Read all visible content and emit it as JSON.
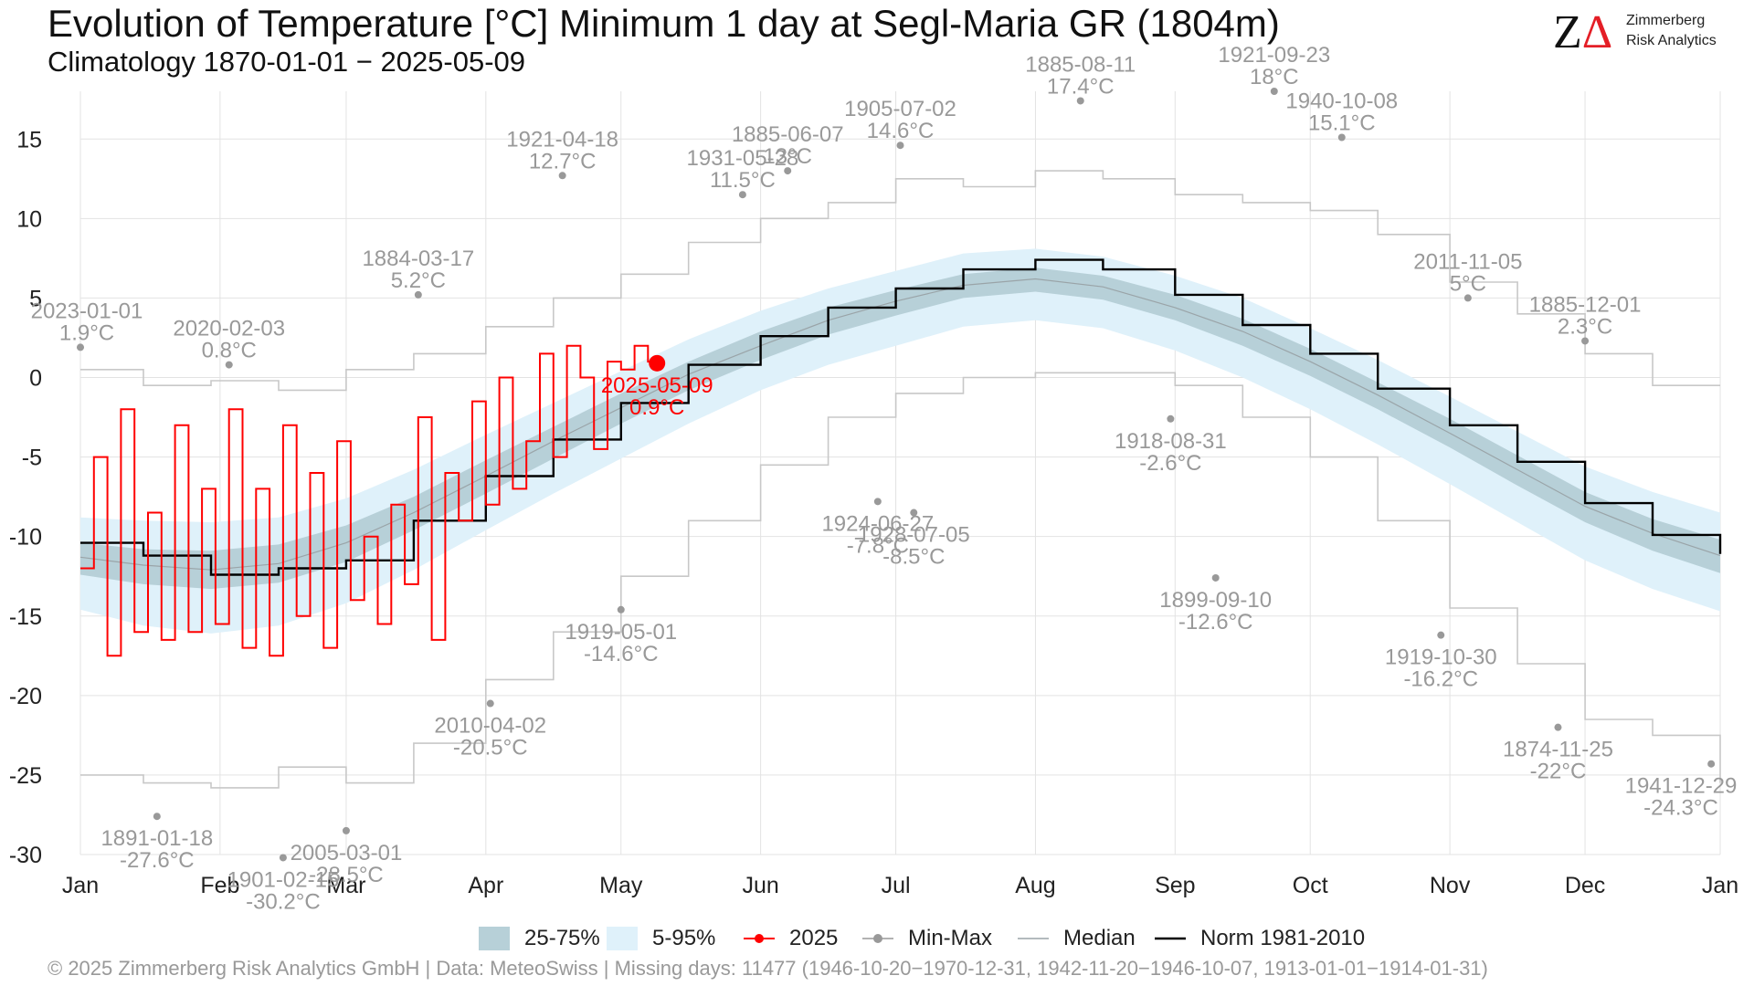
{
  "title": "Evolution of Temperature [°C] Minimum 1 day at Segl-Maria  GR (1804m)",
  "subtitle": "Climatology 1870-01-01 − 2025-05-09",
  "logo": {
    "mark_z": "Z",
    "mark_a": "Δ",
    "line1": "Zimmerberg",
    "line2": "Risk Analytics"
  },
  "footer": "©  2025 Zimmerberg Risk Analytics GmbH | Data: MeteoSwiss | Missing days: 11477 (1946-10-20−1970-12-31, 1942-11-20−1946-10-07, 1913-01-01−1914-01-31)",
  "colors": {
    "band_25_75": "#b7d0d8",
    "band_5_95": "#dff1fa",
    "current": "#ff0000",
    "minmax": "#c8c8c8",
    "median": "#9aa4a8",
    "norm": "#000000",
    "annotation": "#999999"
  },
  "legend": [
    {
      "key": "iqr",
      "label": "25-75%"
    },
    {
      "key": "p90",
      "label": "5-95%"
    },
    {
      "key": "current",
      "label": "2025"
    },
    {
      "key": "minmax",
      "label": "Min-Max"
    },
    {
      "key": "median",
      "label": "Median"
    },
    {
      "key": "norm",
      "label": "Norm 1981-2010"
    }
  ],
  "chart_data": {
    "type": "line",
    "x_unit": "day of year",
    "xlim": [
      1,
      365
    ],
    "ylim": [
      -30,
      18
    ],
    "yticks": [
      15,
      10,
      5,
      0,
      -5,
      -10,
      -15,
      -20,
      -25,
      -30
    ],
    "month_ticks": [
      {
        "label": "Jan",
        "doy": 1
      },
      {
        "label": "Feb",
        "doy": 32
      },
      {
        "label": "Mar",
        "doy": 60
      },
      {
        "label": "Apr",
        "doy": 91
      },
      {
        "label": "May",
        "doy": 121
      },
      {
        "label": "Jun",
        "doy": 152
      },
      {
        "label": "Jul",
        "doy": 182
      },
      {
        "label": "Aug",
        "doy": 213
      },
      {
        "label": "Sep",
        "doy": 244
      },
      {
        "label": "Oct",
        "doy": 274
      },
      {
        "label": "Nov",
        "doy": 305
      },
      {
        "label": "Dec",
        "doy": 335
      },
      {
        "label": "Jan",
        "doy": 365
      }
    ],
    "grid": true,
    "legend_position": "bottom",
    "series": [
      {
        "key": "p95",
        "doy": [
          1,
          15,
          30,
          45,
          60,
          75,
          91,
          106,
          121,
          136,
          152,
          167,
          182,
          197,
          213,
          228,
          244,
          259,
          274,
          289,
          305,
          320,
          335,
          350,
          365
        ],
        "values": [
          -8.8,
          -9.0,
          -9.1,
          -8.8,
          -7.6,
          -5.8,
          -3.6,
          -1.6,
          0.4,
          2.4,
          4.2,
          5.6,
          6.7,
          7.8,
          8.1,
          7.6,
          6.4,
          5.0,
          3.1,
          1.1,
          -1.2,
          -3.4,
          -5.6,
          -7.2,
          -8.5
        ]
      },
      {
        "key": "p75",
        "doy": [
          1,
          15,
          30,
          45,
          60,
          75,
          91,
          106,
          121,
          136,
          152,
          167,
          182,
          197,
          213,
          228,
          244,
          259,
          274,
          289,
          305,
          320,
          335,
          350,
          365
        ],
        "values": [
          -10.4,
          -10.8,
          -10.9,
          -10.5,
          -9.3,
          -7.5,
          -5.2,
          -3.1,
          -1.0,
          1.0,
          2.9,
          4.4,
          5.5,
          6.5,
          6.9,
          6.4,
          5.2,
          3.7,
          1.8,
          -0.3,
          -2.6,
          -4.9,
          -7.2,
          -8.9,
          -10.2
        ]
      },
      {
        "key": "median",
        "doy": [
          1,
          15,
          30,
          45,
          60,
          75,
          91,
          106,
          121,
          136,
          152,
          167,
          182,
          197,
          213,
          228,
          244,
          259,
          274,
          289,
          305,
          320,
          335,
          350,
          365
        ],
        "values": [
          -11.3,
          -11.8,
          -12.1,
          -11.7,
          -10.4,
          -8.5,
          -6.2,
          -4.0,
          -1.9,
          0.2,
          2.0,
          3.6,
          4.8,
          5.8,
          6.2,
          5.7,
          4.4,
          2.9,
          1.0,
          -1.1,
          -3.5,
          -5.8,
          -8.1,
          -9.8,
          -11.2
        ]
      },
      {
        "key": "p25",
        "doy": [
          1,
          15,
          30,
          45,
          60,
          75,
          91,
          106,
          121,
          136,
          152,
          167,
          182,
          197,
          213,
          228,
          244,
          259,
          274,
          289,
          305,
          320,
          335,
          350,
          365
        ],
        "values": [
          -12.4,
          -13.0,
          -13.3,
          -12.9,
          -11.6,
          -9.6,
          -7.3,
          -5.1,
          -2.9,
          -0.8,
          1.1,
          2.7,
          3.9,
          5.0,
          5.4,
          4.9,
          3.6,
          2.0,
          0.1,
          -2.0,
          -4.4,
          -6.8,
          -9.1,
          -10.9,
          -12.3
        ]
      },
      {
        "key": "p5",
        "doy": [
          1,
          15,
          30,
          45,
          60,
          75,
          91,
          106,
          121,
          136,
          152,
          167,
          182,
          197,
          213,
          228,
          244,
          259,
          274,
          289,
          305,
          320,
          335,
          350,
          365
        ],
        "values": [
          -14.6,
          -15.6,
          -16.1,
          -15.6,
          -14.2,
          -12.1,
          -9.6,
          -7.3,
          -5.1,
          -2.9,
          -0.8,
          0.8,
          2.0,
          3.2,
          3.6,
          3.1,
          1.7,
          0.0,
          -2.0,
          -4.2,
          -6.7,
          -9.1,
          -11.5,
          -13.3,
          -14.7
        ]
      },
      {
        "key": "norm",
        "name": "Norm 1981-2010",
        "doy": [
          1,
          15,
          30,
          45,
          60,
          75,
          91,
          106,
          121,
          136,
          152,
          167,
          182,
          197,
          213,
          228,
          244,
          259,
          274,
          289,
          305,
          320,
          335,
          350,
          365
        ],
        "values": [
          -10.4,
          -11.2,
          -12.4,
          -12.0,
          -11.5,
          -9.0,
          -6.2,
          -3.9,
          -1.6,
          0.8,
          2.6,
          4.4,
          5.6,
          6.8,
          7.4,
          6.8,
          5.2,
          3.3,
          1.5,
          -0.7,
          -3.0,
          -5.3,
          -7.9,
          -9.9,
          -11.1
        ]
      },
      {
        "key": "max_record",
        "doy": [
          1,
          15,
          30,
          45,
          60,
          75,
          91,
          106,
          121,
          136,
          152,
          167,
          182,
          197,
          213,
          228,
          244,
          259,
          274,
          289,
          305,
          320,
          335,
          350,
          365
        ],
        "values": [
          0.5,
          -0.5,
          -0.2,
          -0.8,
          0.5,
          1.5,
          3.2,
          5.0,
          6.5,
          8.5,
          10.0,
          11.0,
          12.5,
          12.0,
          13.0,
          12.5,
          11.5,
          11.0,
          10.5,
          9.0,
          6.0,
          4.0,
          1.5,
          -0.5,
          -0.5
        ]
      },
      {
        "key": "min_record",
        "doy": [
          1,
          15,
          30,
          45,
          60,
          75,
          91,
          106,
          121,
          136,
          152,
          167,
          182,
          197,
          213,
          228,
          244,
          259,
          274,
          289,
          305,
          320,
          335,
          350,
          365
        ],
        "values": [
          -25.0,
          -25.5,
          -25.8,
          -24.5,
          -25.5,
          -23.0,
          -19.0,
          -16.0,
          -12.5,
          -9.0,
          -5.5,
          -2.5,
          -1.0,
          0.0,
          0.3,
          0.3,
          -0.5,
          -2.5,
          -5.0,
          -9.0,
          -14.5,
          -18.0,
          -21.5,
          -22.5,
          -25.5
        ]
      },
      {
        "key": "current",
        "name": "2025",
        "doy": [
          1,
          4,
          7,
          10,
          13,
          16,
          19,
          22,
          25,
          28,
          31,
          34,
          37,
          40,
          43,
          46,
          49,
          52,
          55,
          58,
          61,
          64,
          67,
          70,
          73,
          76,
          79,
          82,
          85,
          88,
          91,
          94,
          97,
          100,
          103,
          106,
          109,
          112,
          115,
          118,
          121,
          124,
          127,
          129
        ],
        "values": [
          -12.0,
          -5.0,
          -17.5,
          -2.0,
          -16.0,
          -8.5,
          -16.5,
          -3.0,
          -16.0,
          -7.0,
          -15.5,
          -2.0,
          -17.0,
          -7.0,
          -17.5,
          -3.0,
          -15.0,
          -6.0,
          -17.0,
          -4.0,
          -14.0,
          -10.0,
          -15.5,
          -8.0,
          -13.0,
          -2.5,
          -16.5,
          -6.0,
          -9.0,
          -1.5,
          -8.0,
          0.0,
          -7.0,
          -4.0,
          1.5,
          -5.0,
          2.0,
          0.0,
          -4.5,
          1.0,
          0.5,
          2.0,
          1.0,
          0.9
        ]
      }
    ],
    "annotations": [
      {
        "kind": "max",
        "date": "2023-01-01",
        "value": "1.9°C",
        "doy": 1,
        "y": 1.9
      },
      {
        "kind": "max",
        "date": "2020-02-03",
        "value": "0.8°C",
        "doy": 34,
        "y": 0.8
      },
      {
        "kind": "max",
        "date": "1884-03-17",
        "value": "5.2°C",
        "doy": 76,
        "y": 5.2
      },
      {
        "kind": "max",
        "date": "1921-04-18",
        "value": "12.7°C",
        "doy": 108,
        "y": 12.7
      },
      {
        "kind": "max",
        "date": "1931-05-28",
        "value": "11.5°C",
        "doy": 148,
        "y": 11.5
      },
      {
        "kind": "max",
        "date": "1885-06-07",
        "value": "13°C",
        "doy": 158,
        "y": 13.0
      },
      {
        "kind": "max",
        "date": "1905-07-02",
        "value": "14.6°C",
        "doy": 183,
        "y": 14.6
      },
      {
        "kind": "max",
        "date": "1885-08-11",
        "value": "17.4°C",
        "doy": 223,
        "y": 17.4
      },
      {
        "kind": "max",
        "date": "1921-09-23",
        "value": "18°C",
        "doy": 266,
        "y": 18.0
      },
      {
        "kind": "max",
        "date": "1940-10-08",
        "value": "15.1°C",
        "doy": 281,
        "y": 15.1
      },
      {
        "kind": "max",
        "date": "2011-11-05",
        "value": "5°C",
        "doy": 309,
        "y": 5.0
      },
      {
        "kind": "max",
        "date": "1885-12-01",
        "value": "2.3°C",
        "doy": 335,
        "y": 2.3
      },
      {
        "kind": "min",
        "date": "1891-01-18",
        "value": "-27.6°C",
        "doy": 18,
        "y": -27.6
      },
      {
        "kind": "min",
        "date": "1901-02-15",
        "value": "-30.2°C",
        "doy": 46,
        "y": -30.2
      },
      {
        "kind": "min",
        "date": "2005-03-01",
        "value": "-28.5°C",
        "doy": 60,
        "y": -28.5
      },
      {
        "kind": "min",
        "date": "2010-04-02",
        "value": "-20.5°C",
        "doy": 92,
        "y": -20.5
      },
      {
        "kind": "min",
        "date": "1919-05-01",
        "value": "-14.6°C",
        "doy": 121,
        "y": -14.6
      },
      {
        "kind": "min",
        "date": "1924-06-27",
        "value": "-7.8°C",
        "doy": 178,
        "y": -7.8
      },
      {
        "kind": "min",
        "date": "1928-07-05",
        "value": "-8.5°C",
        "doy": 186,
        "y": -8.5
      },
      {
        "kind": "min",
        "date": "1918-08-31",
        "value": "-2.6°C",
        "doy": 243,
        "y": -2.6
      },
      {
        "kind": "min",
        "date": "1899-09-10",
        "value": "-12.6°C",
        "doy": 253,
        "y": -12.6
      },
      {
        "kind": "min",
        "date": "1919-10-30",
        "value": "-16.2°C",
        "doy": 303,
        "y": -16.2
      },
      {
        "kind": "min",
        "date": "1874-11-25",
        "value": "-22°C",
        "doy": 329,
        "y": -22.0
      },
      {
        "kind": "min",
        "date": "1941-12-29",
        "value": "-24.3°C",
        "doy": 363,
        "y": -24.3
      },
      {
        "kind": "current",
        "date": "2025-05-09",
        "value": "0.9°C",
        "doy": 129,
        "y": 0.9
      }
    ]
  }
}
